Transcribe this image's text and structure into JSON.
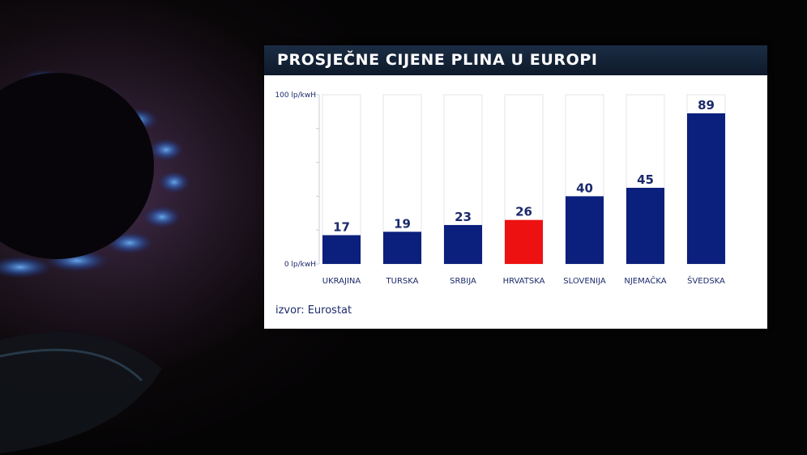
{
  "chart_data": {
    "type": "bar",
    "title": "PROSJEČNE CIJENE PLINA U EUROPI",
    "categories": [
      "UKRAJINA",
      "TURSKA",
      "SRBIJA",
      "HRVATSKA",
      "SLOVENIJA",
      "NJEMAČKA",
      "ŠVEDSKA"
    ],
    "values": [
      17,
      19,
      23,
      26,
      40,
      45,
      89
    ],
    "ylim": [
      0,
      100
    ],
    "y_ticks": [
      {
        "value": 0,
        "label": "0 lp/kwH"
      },
      {
        "value": 100,
        "label": "100 lp/kwH"
      }
    ],
    "source": "izvor: Eurostat",
    "colors": {
      "bar": "#0b1f7c",
      "highlight_bar": "#ee1111",
      "highlight_category": "HRVATSKA",
      "track": "#ffffff",
      "track_border": "#e3e6ec",
      "text": "#1c2a6b",
      "title_bg": "#14233a"
    }
  }
}
